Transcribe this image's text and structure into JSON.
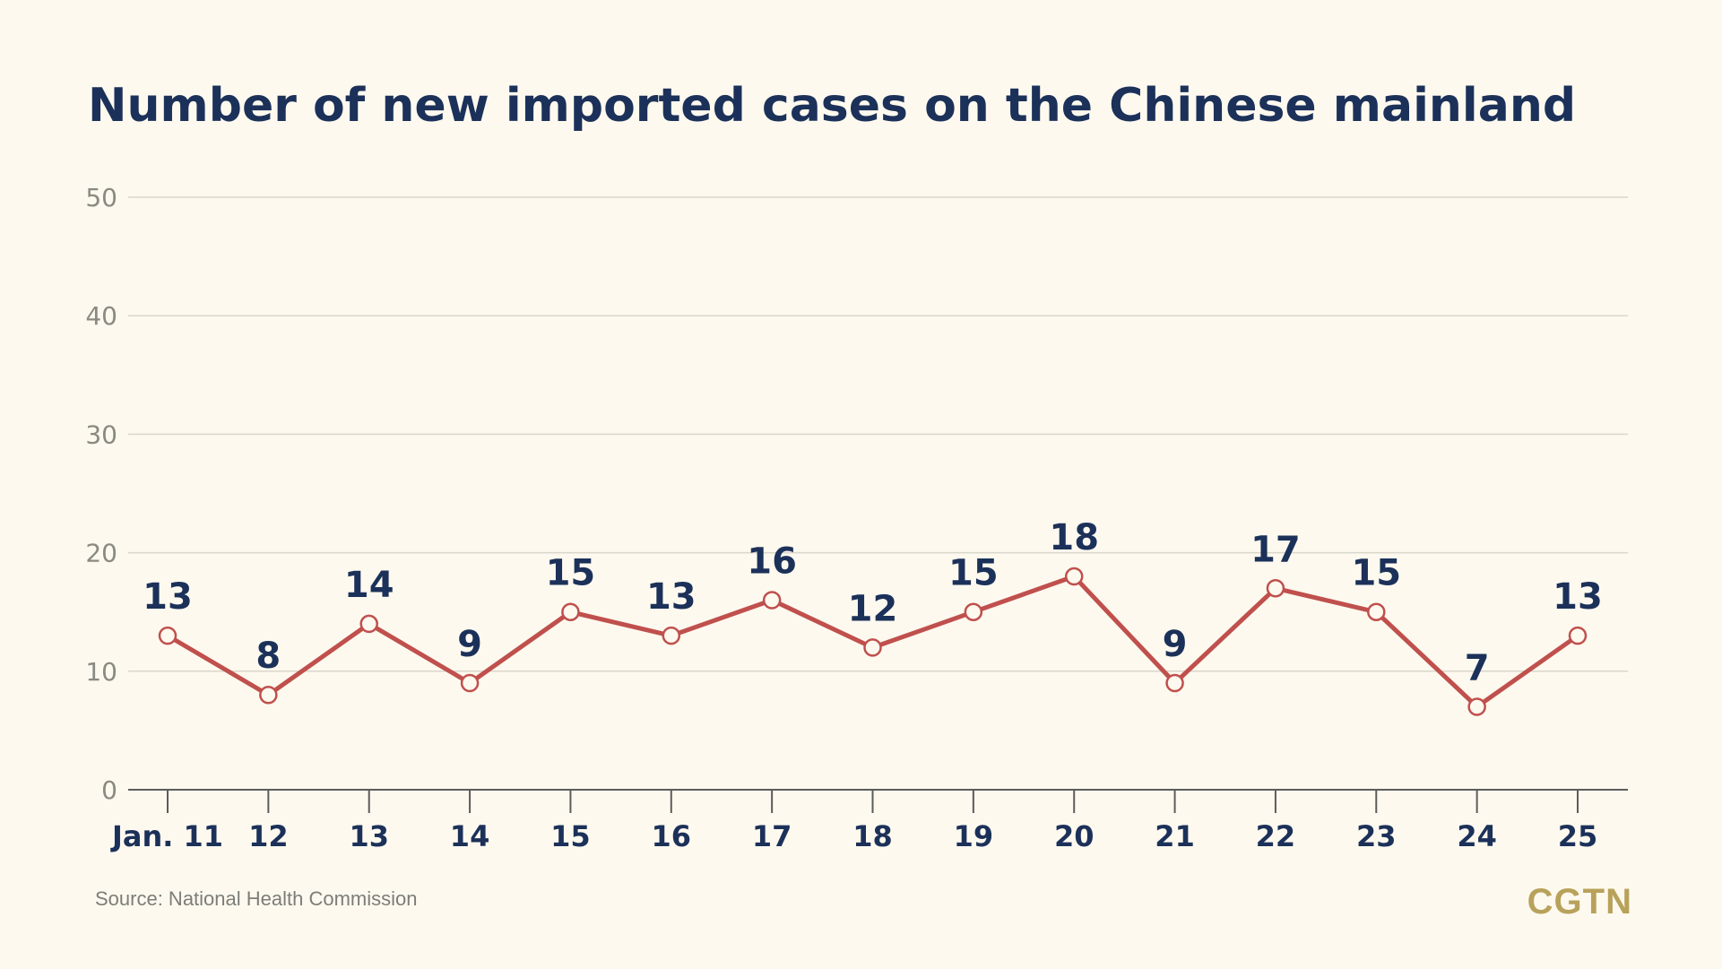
{
  "source": "Source: National Health Commission",
  "logo": "CGTN",
  "colors": {
    "background": "#fdf9ef",
    "line": "#c0504d",
    "text": "#1c3159",
    "brand": "#b8a25a"
  },
  "chart_data": {
    "type": "line",
    "title": "Number of new imported cases on the Chinese mainland",
    "xlabel": "",
    "ylabel": "",
    "categories": [
      "Jan. 11",
      "12",
      "13",
      "14",
      "15",
      "16",
      "17",
      "18",
      "19",
      "20",
      "21",
      "22",
      "23",
      "24",
      "25"
    ],
    "series": [
      {
        "values": [
          13,
          8,
          14,
          9,
          15,
          13,
          16,
          12,
          15,
          18,
          9,
          17,
          15,
          7,
          13
        ]
      }
    ],
    "ylim": [
      0,
      50
    ],
    "yticks": [
      0,
      10,
      20,
      30,
      40,
      50
    ],
    "grid": true,
    "data_labels": true
  }
}
